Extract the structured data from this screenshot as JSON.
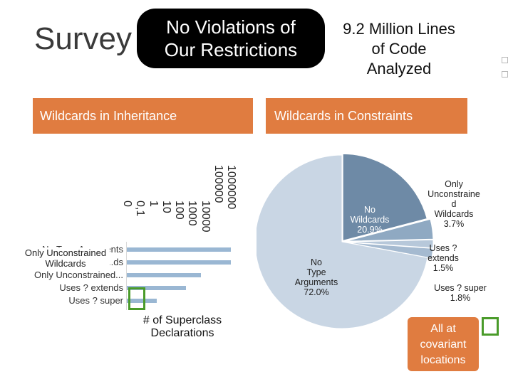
{
  "slide": {
    "title": "Survey",
    "banner": [
      "No Violations of",
      "Our Restrictions"
    ],
    "note": [
      "9.2 Million Lines",
      "of Code",
      "Analyzed"
    ]
  },
  "left_panel": {
    "header": "Wildcards in Inheritance",
    "overlay_label": [
      "Only Unconstrained",
      "Wildcards"
    ],
    "xlabel": [
      "# of Superclass",
      "Declarations"
    ]
  },
  "right_panel": {
    "header": "Wildcards in Constraints",
    "callout": [
      "All at",
      "covariant",
      "locations"
    ]
  },
  "chart_data": [
    {
      "type": "bar",
      "orientation": "horizontal",
      "scale": "log",
      "categories": [
        "No Type Arguments",
        "...ds",
        "Only Unconstrained...",
        "Uses ? extends",
        "Uses ? super"
      ],
      "values": [
        1000000,
        1000000,
        10000,
        1000,
        10
      ],
      "tick_labels": [
        "0",
        "0,1",
        "1",
        "10",
        "100",
        "1000",
        "10000",
        "100000",
        "1000000"
      ],
      "xlabel": "# of Superclass Declarations",
      "grid": false,
      "legend": "none"
    },
    {
      "type": "pie",
      "slices": [
        {
          "label": [
            "No",
            "Type",
            "Arguments",
            "72.0%"
          ],
          "value": 72.0,
          "color": "#c9d6e4"
        },
        {
          "label": [
            "No",
            "Wildcards",
            "20.9%"
          ],
          "value": 20.9,
          "color": "#6e8aa6"
        },
        {
          "label": [
            "Only",
            "Unconstraine",
            "d",
            "Wildcards",
            "3.7%"
          ],
          "value": 3.7,
          "color": "#8fa9c2"
        },
        {
          "label": [
            "Uses ?",
            "extends",
            "1.5%"
          ],
          "value": 1.5,
          "color": "#b7c8da"
        },
        {
          "label": [
            "Uses ? super",
            "1.8%"
          ],
          "value": 1.8,
          "color": "#a5bad0"
        }
      ]
    }
  ]
}
